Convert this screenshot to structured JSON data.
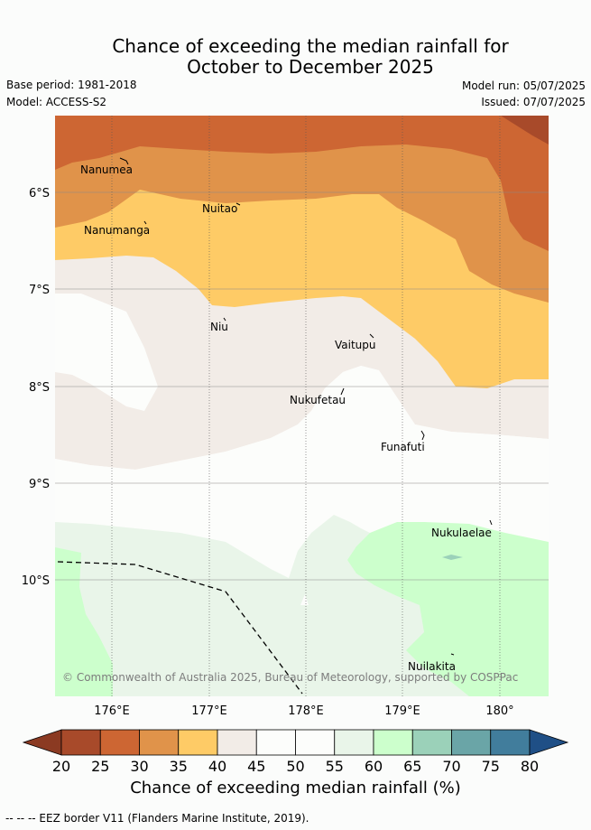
{
  "title_line1": "Chance of exceeding the median rainfall for",
  "title_line2": "October to December 2025",
  "meta": {
    "base_period": "Base period: 1981-2018",
    "model": "Model: ACCESS-S2",
    "model_run": "Model run: 05/07/2025",
    "issued": "Issued: 07/07/2025"
  },
  "axes": {
    "lat_labels": [
      "6°S",
      "7°S",
      "8°S",
      "9°S",
      "10°S"
    ],
    "lon_labels": [
      "176°E",
      "177°E",
      "178°E",
      "179°E",
      "180°"
    ]
  },
  "places": [
    "Nanumea",
    "Nuitao",
    "Nanumanga",
    "Niu",
    "Vaitupu",
    "Nukufetau",
    "Funafuti",
    "Nukulaelae",
    "Nuilakita"
  ],
  "copyright": "© Commonwealth of Australia 2025, Bureau of Meteorology, supported by COSPPac",
  "colorbar": {
    "title": "Chance of exceeding median rainfall (%)",
    "ticks": [
      "20",
      "25",
      "30",
      "35",
      "40",
      "45",
      "50",
      "55",
      "60",
      "65",
      "70",
      "75",
      "80"
    ],
    "colors": [
      "#a84a2a",
      "#cd6633",
      "#e0934a",
      "#fecb66",
      "#f2ece7",
      "#fcfdfb",
      "#fcfdfb",
      "#e9f5e9",
      "#ccffcc",
      "#9bd1b9",
      "#6aa5a7",
      "#417d9c"
    ],
    "low_extend_color": "#8b3a22",
    "high_extend_color": "#1f4f86"
  },
  "footer": "-- -- -- EEZ border V11 (Flanders Marine Institute, 2019)."
}
